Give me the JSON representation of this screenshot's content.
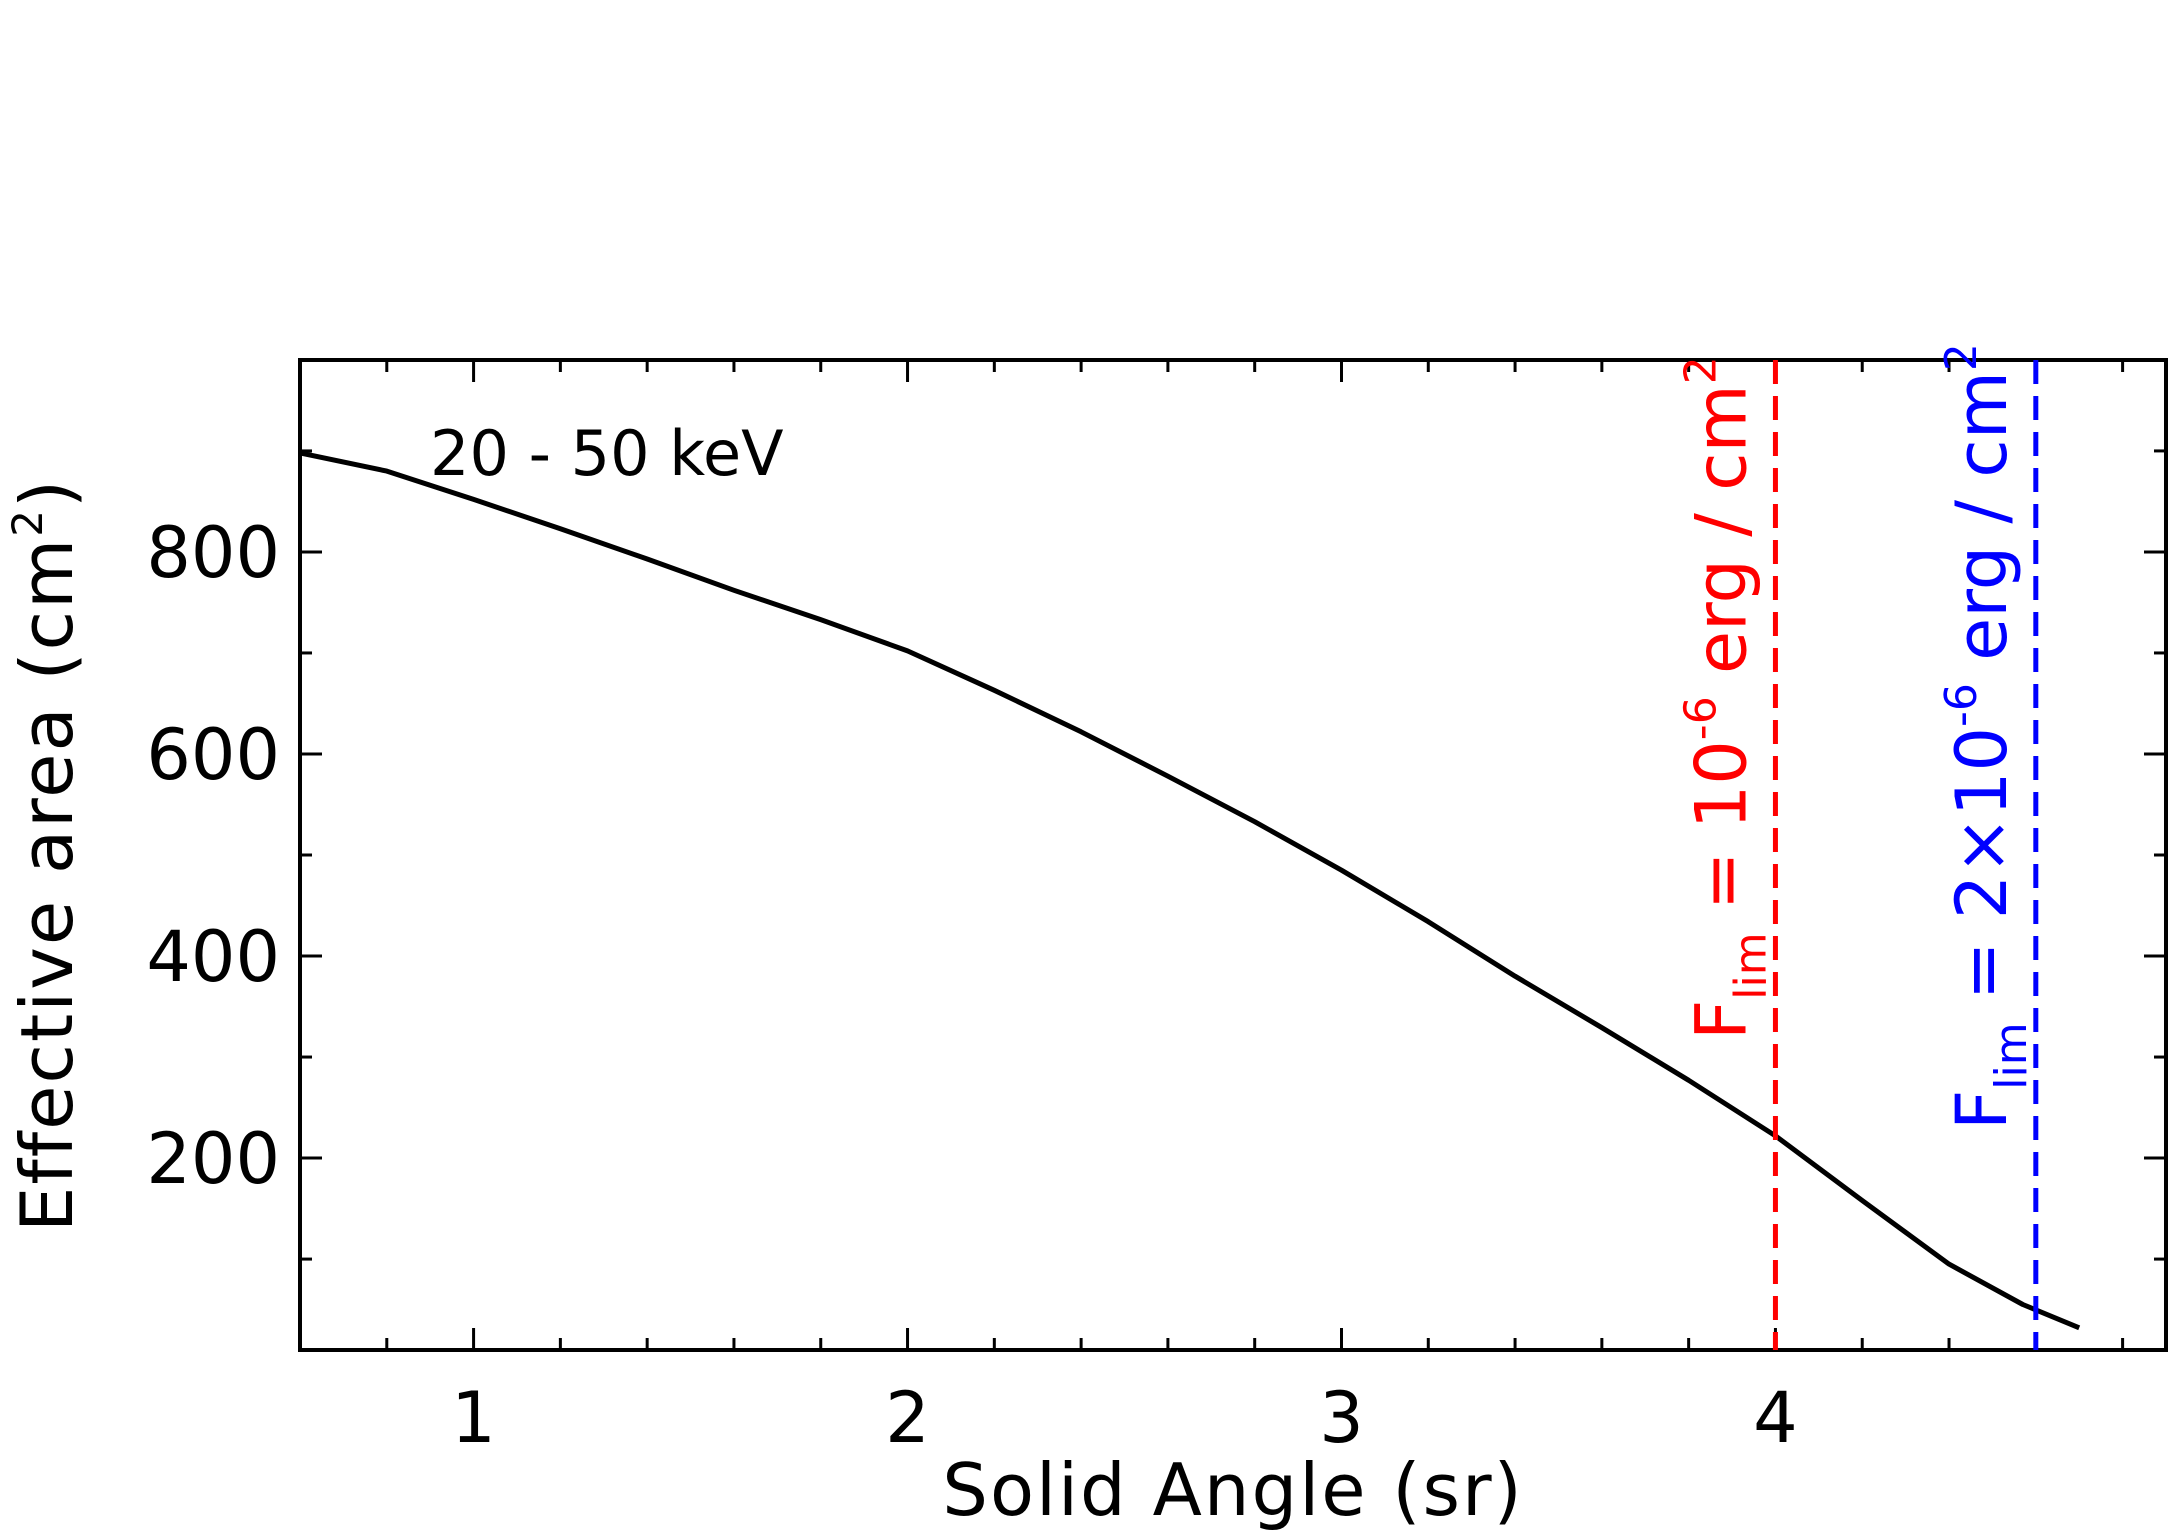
{
  "chart_data": {
    "type": "line",
    "title": "",
    "xlabel": "Solid Angle (sr)",
    "ylabel": "Effective area (cm",
    "ylabel_sup": "2",
    "ylabel_close": ")",
    "xlim": [
      0.6,
      4.9
    ],
    "ylim": [
      10,
      990
    ],
    "xticks": [
      1,
      2,
      3,
      4
    ],
    "xtick_labels": [
      "1",
      "2",
      "3",
      "4"
    ],
    "yticks": [
      200,
      400,
      600,
      800
    ],
    "ytick_labels": [
      "200",
      "400",
      "600",
      "800"
    ],
    "grid": false,
    "annotation": "20 - 50 keV",
    "series": [
      {
        "color": "#000000",
        "x": [
          0.6,
          0.8,
          1.0,
          1.2,
          1.4,
          1.6,
          1.8,
          2.0,
          2.2,
          2.4,
          2.6,
          2.8,
          3.0,
          3.2,
          3.4,
          3.6,
          3.8,
          4.0,
          4.2,
          4.4,
          4.57,
          4.7
        ],
        "y": [
          898,
          880,
          852,
          823,
          793,
          762,
          733,
          702,
          663,
          622,
          578,
          533,
          485,
          434,
          380,
          329,
          277,
          222,
          158,
          95,
          55,
          32
        ]
      }
    ],
    "vlines": [
      {
        "x": 4.0,
        "color": "#ff0000",
        "label_main": "F",
        "label_sub": "lim",
        "label_mid": " = 10",
        "label_sup": "-6",
        "label_end": " erg / cm",
        "label_sup2": "2"
      },
      {
        "x": 4.6,
        "color": "#0000ff",
        "label_main": "F",
        "label_sub": "lim",
        "label_mid": " = 2×10",
        "label_sup": "-6",
        "label_end": " erg / cm",
        "label_sup2": "2"
      }
    ]
  }
}
